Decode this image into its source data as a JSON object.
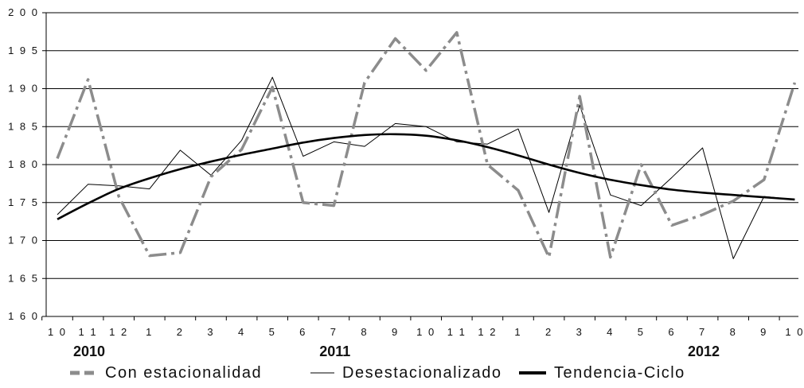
{
  "chart_data": {
    "type": "line",
    "title": "",
    "xlabel": "",
    "ylabel": "",
    "ylim": [
      160,
      200
    ],
    "yticks": [
      "1 6 0",
      "1 6 5",
      "1 7 0",
      "1 7 5",
      "1 8 0",
      "1 8 5",
      "1 9 0",
      "1 9 5",
      "2 0 0"
    ],
    "ytick_values": [
      160,
      165,
      170,
      175,
      180,
      185,
      190,
      195,
      200
    ],
    "categories": [
      "10",
      "11",
      "12",
      "1",
      "2",
      "3",
      "4",
      "5",
      "6",
      "7",
      "8",
      "9",
      "10",
      "11",
      "12",
      "1",
      "2",
      "3",
      "4",
      "5",
      "6",
      "7",
      "8",
      "9",
      "10"
    ],
    "year_labels": [
      {
        "label": "2010",
        "index": 0
      },
      {
        "label": "2011",
        "index": 8
      },
      {
        "label": "2012",
        "index": 20
      }
    ],
    "grid": true,
    "legend_position": "bottom",
    "series": [
      {
        "name": "Con estacionalidad",
        "color": "#8c8c8c",
        "style": "dash-dot",
        "values": [
          180.8,
          191.2,
          175.8,
          168.0,
          168.4,
          178.4,
          182.0,
          190.2,
          175.0,
          174.6,
          190.8,
          196.6,
          192.4,
          197.4,
          180.0,
          176.6,
          167.8,
          189.0,
          167.8,
          180.0,
          172.0,
          173.4,
          175.2,
          178.0,
          190.8
        ]
      },
      {
        "name": "Desestacionalizado",
        "color": "#000000",
        "style": "thin",
        "values": [
          173.4,
          177.4,
          177.2,
          176.8,
          181.9,
          178.6,
          183.2,
          191.5,
          181.1,
          183.0,
          182.4,
          185.4,
          185.0,
          183.0,
          182.7,
          184.7,
          173.7,
          187.8,
          176.0,
          174.6,
          178.3,
          182.2,
          167.6,
          175.8,
          175.4
        ]
      },
      {
        "name": "Tendencia-Ciclo",
        "color": "#000000",
        "style": "thick",
        "values": [
          172.8,
          174.9,
          176.8,
          178.2,
          179.4,
          180.4,
          181.3,
          182.1,
          182.9,
          183.5,
          183.9,
          184.0,
          183.8,
          183.2,
          182.3,
          181.2,
          180.0,
          178.9,
          178.0,
          177.3,
          176.7,
          176.3,
          176.0,
          175.7,
          175.4
        ]
      }
    ]
  }
}
